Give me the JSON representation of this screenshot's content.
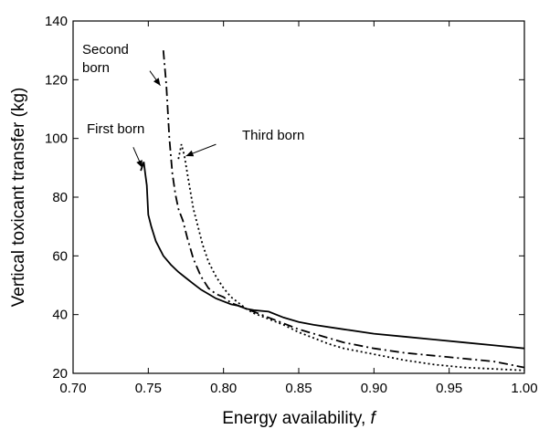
{
  "chart_data": {
    "type": "line",
    "title": "",
    "xlabel_main": "Energy availability, ",
    "xlabel_var": "f",
    "ylabel": "Vertical toxicant transfer (kg)",
    "xlim": [
      0.7,
      1.0
    ],
    "ylim": [
      20,
      140
    ],
    "xticks": [
      "0.70",
      "0.75",
      "0.80",
      "0.85",
      "0.90",
      "0.95",
      "1.00"
    ],
    "yticks": [
      "20",
      "40",
      "60",
      "80",
      "100",
      "120",
      "140"
    ],
    "grid": false,
    "series": [
      {
        "name": "First born",
        "style": "solid",
        "x": [
          0.745,
          0.747,
          0.748,
          0.749,
          0.75,
          0.752,
          0.755,
          0.76,
          0.765,
          0.77,
          0.775,
          0.78,
          0.785,
          0.79,
          0.795,
          0.8,
          0.805,
          0.81,
          0.815,
          0.82,
          0.83,
          0.84,
          0.85,
          0.86,
          0.88,
          0.9,
          0.92,
          0.94,
          0.96,
          0.98,
          1.0
        ],
        "y": [
          89,
          92,
          88,
          84,
          74,
          70,
          65,
          60,
          57,
          54.5,
          52.5,
          50.5,
          48.5,
          47,
          45.5,
          44.5,
          43.5,
          43,
          42,
          41.5,
          41,
          39,
          37.5,
          36.5,
          35,
          33.5,
          32.5,
          31.5,
          30.5,
          29.5,
          28.5
        ]
      },
      {
        "name": "Second born",
        "style": "dashdot",
        "x": [
          0.76,
          0.762,
          0.764,
          0.766,
          0.768,
          0.77,
          0.773,
          0.776,
          0.78,
          0.785,
          0.79,
          0.795,
          0.8,
          0.805,
          0.81,
          0.815,
          0.82,
          0.83,
          0.84,
          0.85,
          0.86,
          0.87,
          0.88,
          0.9,
          0.92,
          0.94,
          0.96,
          0.98,
          1.0
        ],
        "y": [
          130,
          118,
          100,
          88,
          81,
          76,
          72,
          66,
          59,
          53,
          49,
          47,
          46,
          44,
          43,
          42,
          41,
          39,
          37,
          35,
          33.5,
          32,
          30.5,
          28.5,
          27,
          26,
          25,
          24,
          22
        ]
      },
      {
        "name": "Third born",
        "style": "dotted",
        "x": [
          0.77,
          0.772,
          0.774,
          0.776,
          0.778,
          0.78,
          0.783,
          0.786,
          0.79,
          0.795,
          0.8,
          0.805,
          0.81,
          0.815,
          0.82,
          0.83,
          0.84,
          0.85,
          0.86,
          0.87,
          0.88,
          0.9,
          0.92,
          0.94,
          0.96,
          0.98,
          1.0
        ],
        "y": [
          93,
          98,
          94,
          88,
          82,
          76,
          70,
          64,
          58,
          53,
          49,
          46,
          44,
          42,
          40.5,
          38.5,
          36.5,
          34,
          32,
          30,
          28.5,
          26.5,
          24.5,
          23,
          22,
          21.5,
          21
        ]
      }
    ],
    "annotations": [
      {
        "lines": [
          "Second",
          "born"
        ],
        "arrow_from": [
          0.751,
          123
        ],
        "arrow_to": [
          0.758,
          118
        ]
      },
      {
        "lines": [
          "First born"
        ],
        "arrow_from": [
          0.74,
          97
        ],
        "arrow_to": [
          0.746,
          90
        ]
      },
      {
        "lines": [
          "Third born"
        ],
        "arrow_from": [
          0.795,
          98
        ],
        "arrow_to": [
          0.775,
          94
        ]
      }
    ]
  }
}
